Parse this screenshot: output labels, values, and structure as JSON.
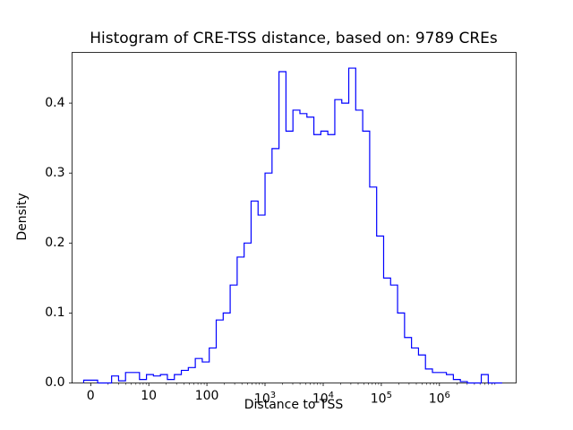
{
  "figure": {
    "title": "Histogram of CRE-TSS distance, based on: 9789 CREs",
    "xlabel": "Distance to TSS",
    "ylabel": "Density"
  },
  "chart_data": {
    "type": "bar",
    "subtype": "step-histogram",
    "title": "Histogram of CRE-TSS distance, based on: 9789 CREs",
    "xlabel": "Distance to TSS",
    "ylabel": "Density",
    "n_samples": 9789,
    "x_scale": "symlog",
    "grid": false,
    "legend": false,
    "line_color": "#0000ff",
    "axis_color": "#000000",
    "xlim_log10": [
      -0.32,
      7.32
    ],
    "ylim": [
      0,
      0.4725
    ],
    "x_ticks": [
      {
        "label": "0",
        "log10": 0
      },
      {
        "label": "10",
        "log10": 1
      },
      {
        "label": "100",
        "log10": 2
      },
      {
        "label": "10^3",
        "log10": 3
      },
      {
        "label": "10^4",
        "log10": 4
      },
      {
        "label": "10^5",
        "log10": 5
      },
      {
        "label": "10^6",
        "log10": 6
      }
    ],
    "y_ticks": [
      {
        "label": "0.0",
        "value": 0.0
      },
      {
        "label": "0.1",
        "value": 0.1
      },
      {
        "label": "0.2",
        "value": 0.2
      },
      {
        "label": "0.3",
        "value": 0.3
      },
      {
        "label": "0.4",
        "value": 0.4
      }
    ],
    "bin_edges_log10": [
      -0.12,
      0,
      0.12,
      0.24,
      0.36,
      0.48,
      0.6,
      0.72,
      0.84,
      0.96,
      1.08,
      1.2,
      1.32,
      1.44,
      1.56,
      1.68,
      1.8,
      1.92,
      2.04,
      2.16,
      2.28,
      2.4,
      2.52,
      2.64,
      2.76,
      2.88,
      3,
      3.12,
      3.24,
      3.36,
      3.48,
      3.6,
      3.72,
      3.84,
      3.96,
      4.08,
      4.2,
      4.32,
      4.44,
      4.56,
      4.68,
      4.8,
      4.92,
      5.04,
      5.16,
      5.28,
      5.4,
      5.52,
      5.64,
      5.76,
      5.88,
      6,
      6.12,
      6.24,
      6.36,
      6.48,
      6.6,
      6.72,
      6.84,
      6.96,
      7.08
    ],
    "densities": [
      0.004,
      0.004,
      0,
      0,
      0.01,
      0.003,
      0.015,
      0.015,
      0.005,
      0.012,
      0.01,
      0.012,
      0.005,
      0.012,
      0.018,
      0.022,
      0.035,
      0.03,
      0.05,
      0.09,
      0.1,
      0.14,
      0.18,
      0.2,
      0.26,
      0.24,
      0.3,
      0.335,
      0.445,
      0.36,
      0.39,
      0.385,
      0.38,
      0.355,
      0.36,
      0.355,
      0.405,
      0.4,
      0.45,
      0.39,
      0.36,
      0.28,
      0.21,
      0.15,
      0.14,
      0.1,
      0.065,
      0.05,
      0.04,
      0.02,
      0.015,
      0.015,
      0.012,
      0.005,
      0.002,
      0,
      0,
      0.012,
      0,
      0
    ]
  }
}
